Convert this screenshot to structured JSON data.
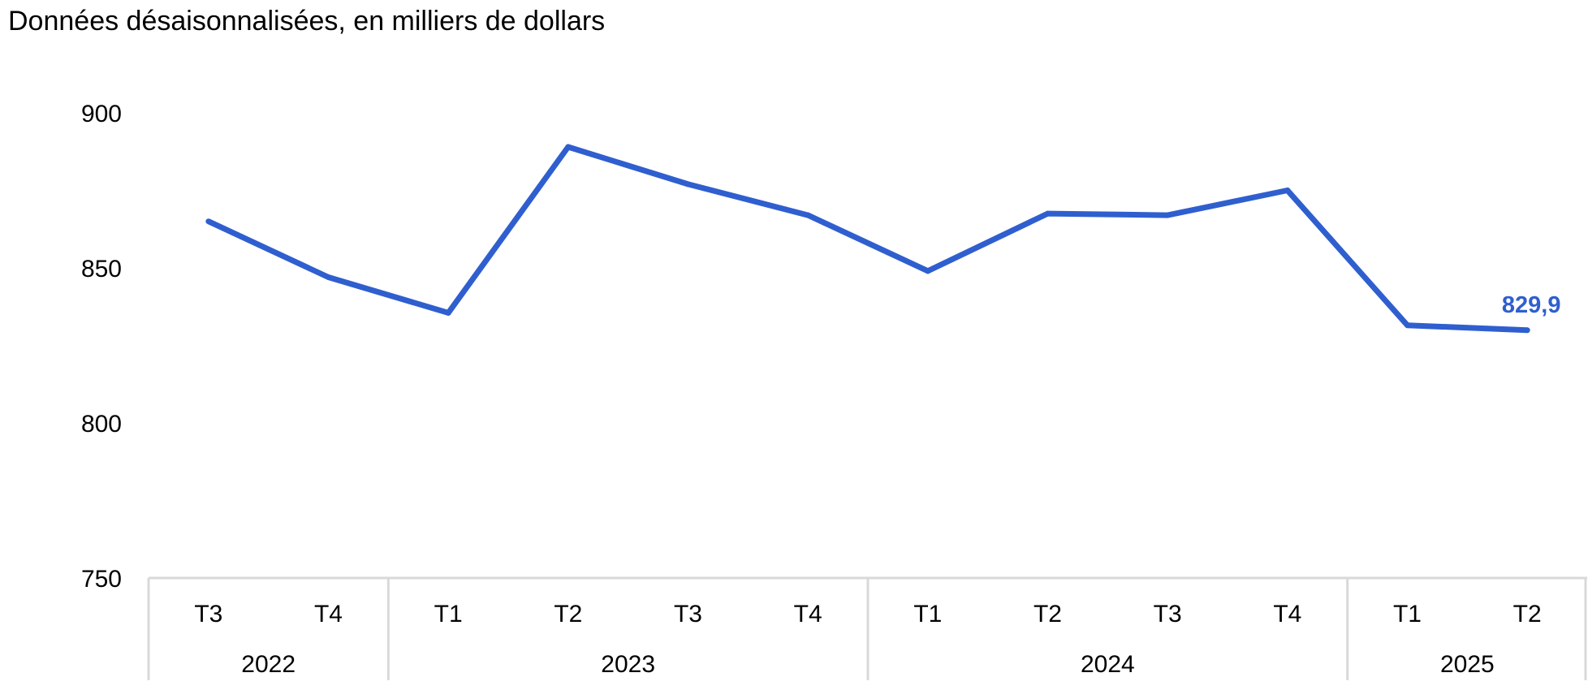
{
  "chart_data": {
    "type": "line",
    "title": "Données désaisonnalisées, en milliers de dollars",
    "xlabel": "",
    "ylabel": "",
    "ylim": [
      750,
      900
    ],
    "yticks": [
      750,
      800,
      850,
      900
    ],
    "ytick_labels": [
      "750",
      "800",
      "850",
      "900"
    ],
    "grid": false,
    "categories": [
      "T3",
      "T4",
      "T1",
      "T2",
      "T3",
      "T4",
      "T1",
      "T2",
      "T3",
      "T4",
      "T1",
      "T2"
    ],
    "groups": [
      {
        "label": "2022",
        "count": 2
      },
      {
        "label": "2023",
        "count": 4
      },
      {
        "label": "2024",
        "count": 4
      },
      {
        "label": "2025",
        "count": 2
      }
    ],
    "series": [
      {
        "values": [
          865.0,
          847.0,
          835.5,
          889.0,
          877.0,
          867.0,
          849.0,
          867.5,
          867.0,
          875.0,
          831.5,
          829.9
        ],
        "color": "#2f5fcf"
      }
    ],
    "annotations": [
      {
        "index": 11,
        "text": "829,9",
        "color": "#2f5fcf"
      }
    ],
    "axis_color": "#d9d9d9"
  }
}
